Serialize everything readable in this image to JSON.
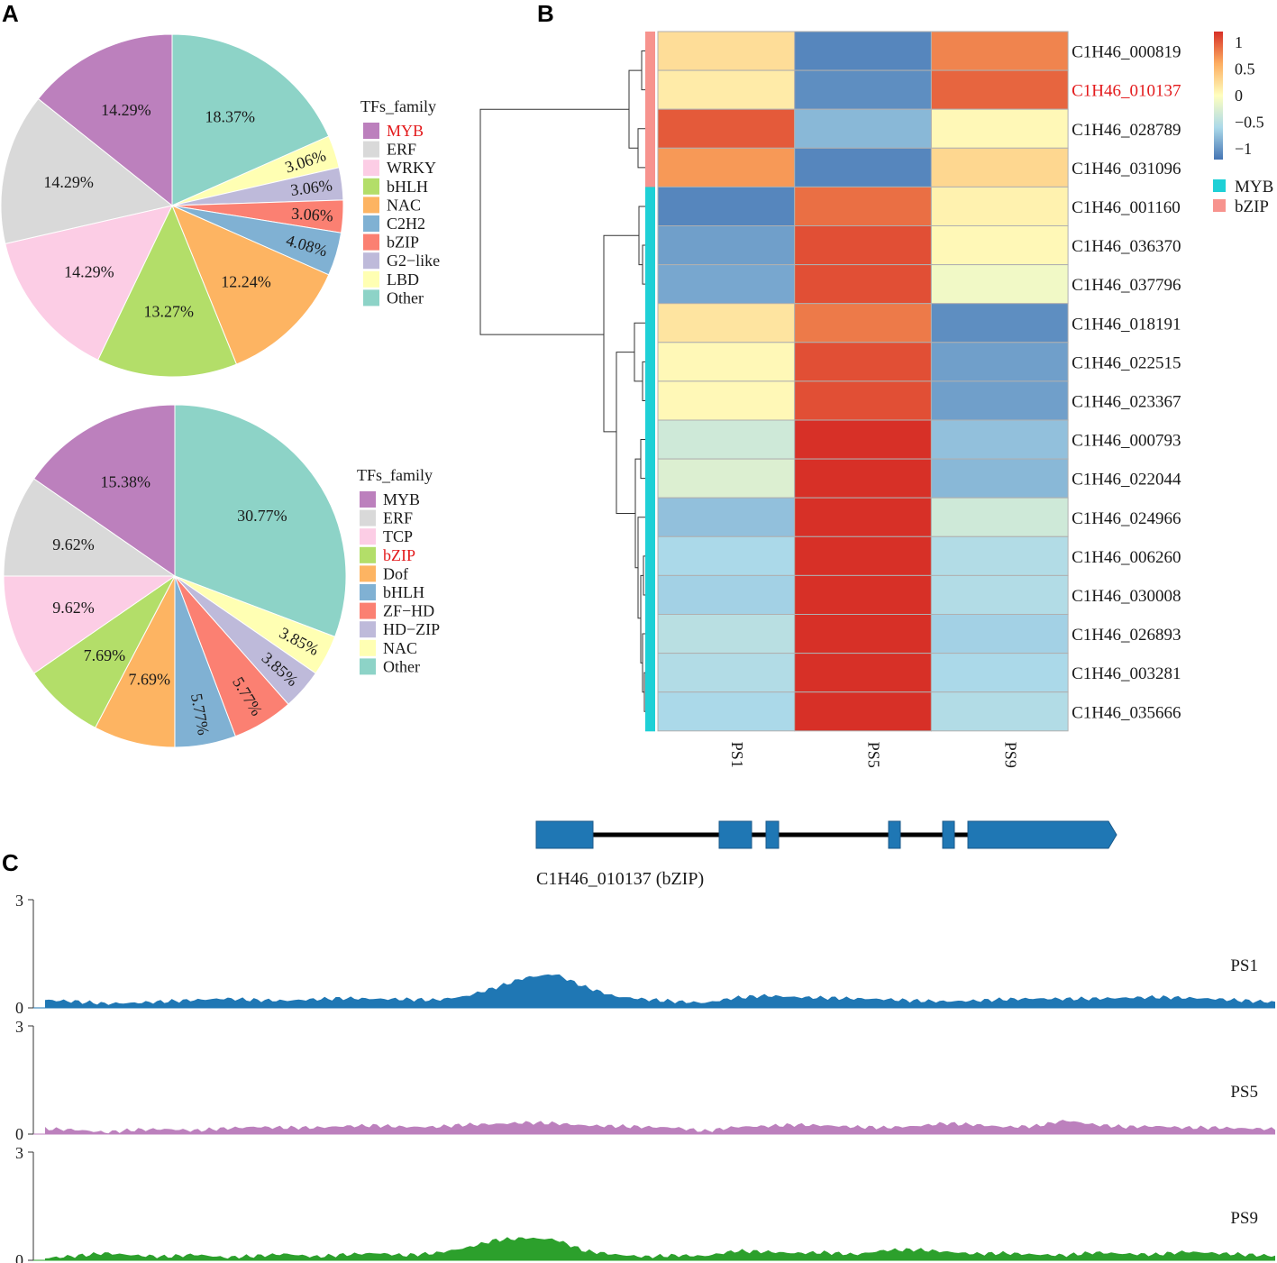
{
  "panels": {
    "a": "A",
    "b": "B",
    "c": "C"
  },
  "chart_data": [
    {
      "type": "pie",
      "legend_title": "TFs_family",
      "start": "top, clockwise",
      "slices": [
        {
          "label": "Other",
          "value": 18.37,
          "text": "18.37%",
          "color": "#8dd3c7"
        },
        {
          "label": "LBD",
          "value": 3.06,
          "text": "3.06%",
          "color": "#ffffb3"
        },
        {
          "label": "G2−like",
          "value": 3.06,
          "text": "3.06%",
          "color": "#bebada"
        },
        {
          "label": "bZIP",
          "value": 3.06,
          "text": "3.06%",
          "color": "#fb8072"
        },
        {
          "label": "C2H2",
          "value": 4.08,
          "text": "4.08%",
          "color": "#80b1d3"
        },
        {
          "label": "NAC",
          "value": 12.24,
          "text": "12.24%",
          "color": "#fdb462"
        },
        {
          "label": "bHLH",
          "value": 13.27,
          "text": "13.27%",
          "color": "#b3de69"
        },
        {
          "label": "WRKY",
          "value": 14.29,
          "text": "14.29%",
          "color": "#fccde5"
        },
        {
          "label": "ERF",
          "value": 14.29,
          "text": "14.29%",
          "color": "#d9d9d9"
        },
        {
          "label": "MYB",
          "value": 14.29,
          "text": "14.29%",
          "color": "#bc80bd"
        }
      ],
      "legend": [
        {
          "label": "MYB",
          "color": "#bc80bd",
          "highlight": true
        },
        {
          "label": "ERF",
          "color": "#d9d9d9"
        },
        {
          "label": "WRKY",
          "color": "#fccde5"
        },
        {
          "label": "bHLH",
          "color": "#b3de69"
        },
        {
          "label": "NAC",
          "color": "#fdb462"
        },
        {
          "label": "C2H2",
          "color": "#80b1d3"
        },
        {
          "label": "bZIP",
          "color": "#fb8072"
        },
        {
          "label": "G2−like",
          "color": "#bebada"
        },
        {
          "label": "LBD",
          "color": "#ffffb3"
        },
        {
          "label": "Other",
          "color": "#8dd3c7"
        }
      ]
    },
    {
      "type": "pie",
      "legend_title": "TFs_family",
      "start": "top, clockwise",
      "slices": [
        {
          "label": "Other",
          "value": 30.77,
          "text": "30.77%",
          "color": "#8dd3c7"
        },
        {
          "label": "NAC",
          "value": 3.85,
          "text": "3.85%",
          "color": "#ffffb3"
        },
        {
          "label": "HD−ZIP",
          "value": 3.85,
          "text": "3.85%",
          "color": "#bebada"
        },
        {
          "label": "ZF−HD",
          "value": 5.77,
          "text": "5.77%",
          "color": "#fb8072"
        },
        {
          "label": "bHLH",
          "value": 5.77,
          "text": "5.77%",
          "color": "#80b1d3"
        },
        {
          "label": "Dof",
          "value": 7.69,
          "text": "7.69%",
          "color": "#fdb462"
        },
        {
          "label": "bZIP",
          "value": 7.69,
          "text": "7.69%",
          "color": "#b3de69"
        },
        {
          "label": "TCP",
          "value": 9.62,
          "text": "9.62%",
          "color": "#fccde5"
        },
        {
          "label": "ERF",
          "value": 9.62,
          "text": "9.62%",
          "color": "#d9d9d9"
        },
        {
          "label": "MYB",
          "value": 15.38,
          "text": "15.38%",
          "color": "#bc80bd"
        }
      ],
      "legend": [
        {
          "label": "MYB",
          "color": "#bc80bd"
        },
        {
          "label": "ERF",
          "color": "#d9d9d9"
        },
        {
          "label": "TCP",
          "color": "#fccde5"
        },
        {
          "label": "bZIP",
          "color": "#b3de69",
          "highlight": true
        },
        {
          "label": "Dof",
          "color": "#fdb462"
        },
        {
          "label": "bHLH",
          "color": "#80b1d3"
        },
        {
          "label": "ZF−HD",
          "color": "#fb8072"
        },
        {
          "label": "HD−ZIP",
          "color": "#bebada"
        },
        {
          "label": "NAC",
          "color": "#ffffb3"
        },
        {
          "label": "Other",
          "color": "#8dd3c7"
        }
      ]
    },
    {
      "type": "heatmap",
      "columns": [
        "PS1",
        "PS5",
        "PS9"
      ],
      "rows": [
        {
          "gene": "C1H46_000819",
          "family": "bZIP",
          "values": [
            0.25,
            -1.1,
            0.8
          ]
        },
        {
          "gene": "C1H46_010137",
          "family": "bZIP",
          "values": [
            0.15,
            -1.05,
            0.95
          ],
          "highlight": true
        },
        {
          "gene": "C1H46_028789",
          "family": "bZIP",
          "values": [
            1.0,
            -0.8,
            0.05
          ]
        },
        {
          "gene": "C1H46_031096",
          "family": "bZIP",
          "values": [
            0.7,
            -1.1,
            0.3
          ]
        },
        {
          "gene": "C1H46_001160",
          "family": "MYB",
          "values": [
            -1.1,
            0.9,
            0.1
          ]
        },
        {
          "gene": "C1H46_036370",
          "family": "MYB",
          "values": [
            -0.95,
            1.05,
            0.05
          ]
        },
        {
          "gene": "C1H46_037796",
          "family": "MYB",
          "values": [
            -0.9,
            1.05,
            -0.1
          ]
        },
        {
          "gene": "C1H46_018191",
          "family": "MYB",
          "values": [
            0.2,
            0.85,
            -1.05
          ]
        },
        {
          "gene": "C1H46_022515",
          "family": "MYB",
          "values": [
            0.05,
            1.05,
            -0.95
          ]
        },
        {
          "gene": "C1H46_023367",
          "family": "MYB",
          "values": [
            0.05,
            1.05,
            -0.95
          ]
        },
        {
          "gene": "C1H46_000793",
          "family": "MYB",
          "values": [
            -0.35,
            1.2,
            -0.75
          ]
        },
        {
          "gene": "C1H46_022044",
          "family": "MYB",
          "values": [
            -0.25,
            1.2,
            -0.8
          ]
        },
        {
          "gene": "C1H46_024966",
          "family": "MYB",
          "values": [
            -0.75,
            1.2,
            -0.35
          ]
        },
        {
          "gene": "C1H46_006260",
          "family": "MYB",
          "values": [
            -0.6,
            1.2,
            -0.55
          ]
        },
        {
          "gene": "C1H46_030008",
          "family": "MYB",
          "values": [
            -0.65,
            1.2,
            -0.55
          ]
        },
        {
          "gene": "C1H46_026893",
          "family": "MYB",
          "values": [
            -0.5,
            1.2,
            -0.65
          ]
        },
        {
          "gene": "C1H46_003281",
          "family": "MYB",
          "values": [
            -0.55,
            1.2,
            -0.6
          ]
        },
        {
          "gene": "C1H46_035666",
          "family": "MYB",
          "values": [
            -0.6,
            1.2,
            -0.55
          ]
        }
      ],
      "scale": {
        "min": -1.2,
        "max": 1.2,
        "ticks": [
          1,
          0.5,
          0,
          -0.5,
          -1
        ],
        "tick_labels": [
          "1",
          "0.5",
          "0",
          "−0.5",
          "−1"
        ]
      },
      "annotation_legend": [
        {
          "label": "MYB",
          "color": "#1ed0d6"
        },
        {
          "label": "bZIP",
          "color": "#f7938e"
        }
      ],
      "colors": {
        "low": "#4575b4",
        "mid": "#ffffbf",
        "high": "#d73027",
        "grid": "#b0b0b0"
      }
    },
    {
      "type": "area",
      "gene_model": {
        "label": "C1H46_010137 (bZIP)",
        "color": "#1f77b4"
      },
      "ylim": [
        0,
        3
      ],
      "y_ticks": [
        "3",
        "0"
      ],
      "tracks": [
        {
          "name": "PS1",
          "color": "#1f77b4",
          "profile": [
            0.22,
            0.18,
            0.12,
            0.14,
            0.18,
            0.22,
            0.26,
            0.22,
            0.2,
            0.24,
            0.27,
            0.25,
            0.24,
            0.22,
            0.32,
            0.56,
            0.84,
            0.94,
            0.58,
            0.32,
            0.24,
            0.18,
            0.14,
            0.28,
            0.34,
            0.3,
            0.28,
            0.26,
            0.24,
            0.2,
            0.18,
            0.2,
            0.24,
            0.26,
            0.25,
            0.26,
            0.28,
            0.3,
            0.28,
            0.25,
            0.2,
            0.16
          ]
        },
        {
          "name": "PS5",
          "color": "#bc80bd",
          "profile": [
            0.15,
            0.12,
            0.05,
            0.12,
            0.14,
            0.1,
            0.16,
            0.2,
            0.18,
            0.18,
            0.22,
            0.24,
            0.2,
            0.2,
            0.26,
            0.28,
            0.32,
            0.3,
            0.24,
            0.22,
            0.2,
            0.18,
            0.08,
            0.2,
            0.22,
            0.26,
            0.24,
            0.2,
            0.18,
            0.22,
            0.3,
            0.26,
            0.2,
            0.22,
            0.38,
            0.26,
            0.2,
            0.22,
            0.18,
            0.18,
            0.16,
            0.14
          ]
        },
        {
          "name": "PS9",
          "color": "#2ca02c",
          "profile": [
            0.06,
            0.12,
            0.2,
            0.14,
            0.1,
            0.16,
            0.08,
            0.12,
            0.18,
            0.1,
            0.16,
            0.2,
            0.14,
            0.2,
            0.34,
            0.56,
            0.62,
            0.58,
            0.26,
            0.16,
            0.1,
            0.14,
            0.12,
            0.26,
            0.24,
            0.2,
            0.22,
            0.16,
            0.28,
            0.3,
            0.24,
            0.18,
            0.2,
            0.16,
            0.14,
            0.22,
            0.18,
            0.16,
            0.24,
            0.2,
            0.16,
            0.12
          ]
        }
      ]
    }
  ]
}
